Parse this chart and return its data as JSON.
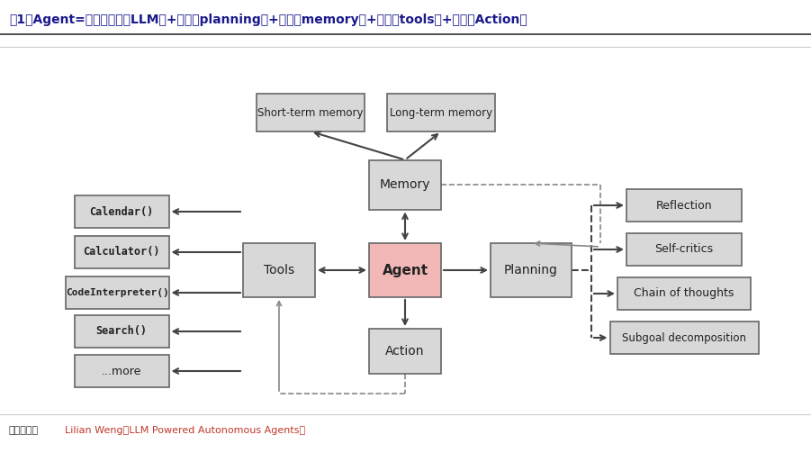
{
  "title": "图1：Agent=大语言模型（LLM）+规划（planning）+记忆（memory）+工具（tools）+行动（Action）",
  "title_color": "#1a1a8c",
  "bg_color": "#ffffff",
  "box_border_color": "#888888",
  "box_fill_normal": "#d8d8d8",
  "box_fill_agent": "#f2b8b8",
  "footer_normal": "资料来源：",
  "footer_link": "Lilian Weng《LLM Powered Autonomous Agents》",
  "footer_link_color": "#c0392b",
  "footer_normal_color": "#333333"
}
